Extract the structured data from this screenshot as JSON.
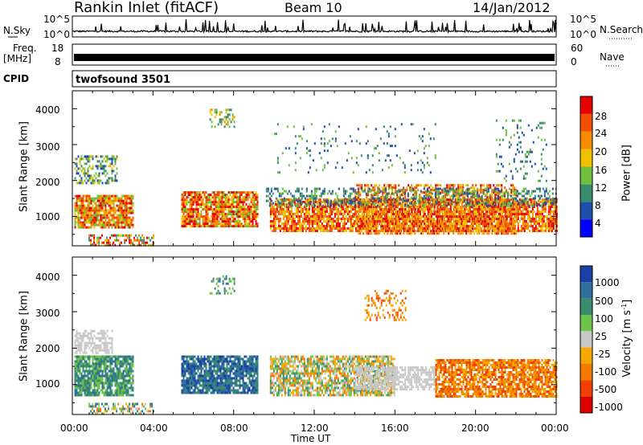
{
  "header": {
    "station": "Rankin Inlet (fitACF)",
    "beam": "Beam 10",
    "date": "14/Jan/2012"
  },
  "noise_panel": {
    "left_label": "N.Sky",
    "left_ticks": [
      "10^5",
      "10^0"
    ],
    "right_label": "N.Search",
    "right_ticks": [
      "10^5",
      "10^0"
    ]
  },
  "freq_panel": {
    "left_label": "Freq.",
    "left_unit": "[MHz]",
    "left_ticks": [
      "18",
      "8"
    ],
    "right_label": "Nave",
    "right_ticks": [
      "60",
      "0"
    ]
  },
  "cpid": {
    "label": "CPID",
    "value": "twofsound 3501"
  },
  "colors": {
    "power": [
      "#0000ff",
      "#1f4fa8",
      "#3a8c6e",
      "#6fbf3f",
      "#f2c200",
      "#f58c00",
      "#f24d00",
      "#e60000"
    ],
    "velocity": [
      "#1c3faa",
      "#2f6f9c",
      "#3a8c6e",
      "#6fc24a",
      "#c8c8c8",
      "#f5a800",
      "#f57a00",
      "#f24000",
      "#e00000"
    ]
  },
  "chart_data": [
    {
      "type": "heatmap",
      "quantity": "Power",
      "ylabel": "Slant Range [km]",
      "yticks": [
        1000,
        2000,
        3000,
        4000
      ],
      "ylim": [
        180,
        4500
      ],
      "xlim": [
        0,
        24
      ],
      "colorbar_label": "Power [dB]",
      "colorbar_ticks": [
        "4",
        "8",
        "12",
        "16",
        "20",
        "24",
        "28"
      ],
      "colorbar_range": [
        0,
        30
      ]
    },
    {
      "type": "heatmap",
      "quantity": "Velocity",
      "ylabel": "Slant Range [km]",
      "yticks": [
        1000,
        2000,
        3000,
        4000
      ],
      "ylim": [
        180,
        4500
      ],
      "xlim": [
        0,
        24
      ],
      "xlabel": "Time UT",
      "xticks": [
        "00:00",
        "04:00",
        "08:00",
        "12:00",
        "16:00",
        "20:00",
        "00:00"
      ],
      "colorbar_label": "Velocity [m s",
      "colorbar_unit_sup": "-1",
      "colorbar_unit_close": "]",
      "colorbar_ticks": [
        "1000",
        "500",
        "100",
        "25",
        "-25",
        "-100",
        "-500",
        "-1000"
      ]
    }
  ]
}
